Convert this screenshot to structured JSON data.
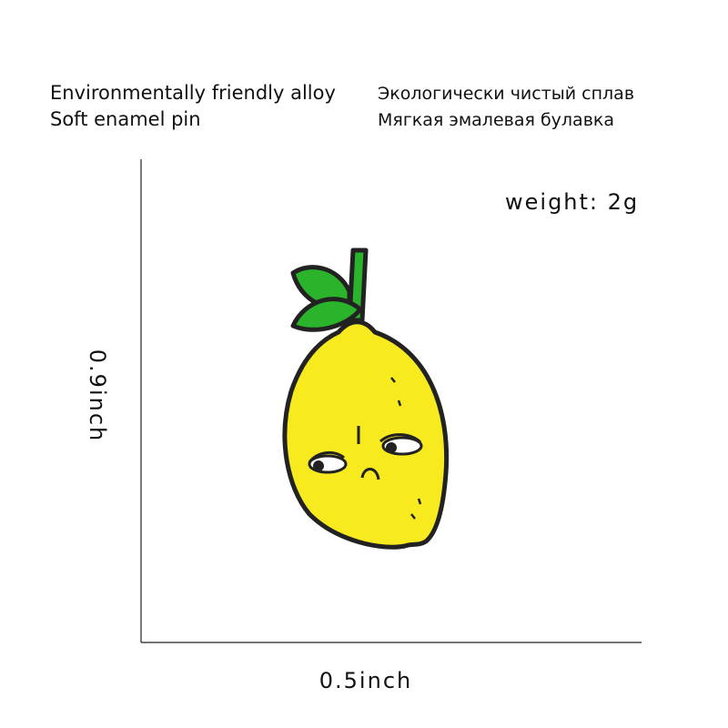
{
  "header": {
    "english": [
      "Environmentally friendly alloy",
      "Soft enamel pin"
    ],
    "russian": [
      "Экологически чистый сплав",
      "Мягкая эмалевая булавка"
    ]
  },
  "weight": "weight:  2g",
  "height_label": "0.9inch",
  "width_label": "0.5inch"
}
